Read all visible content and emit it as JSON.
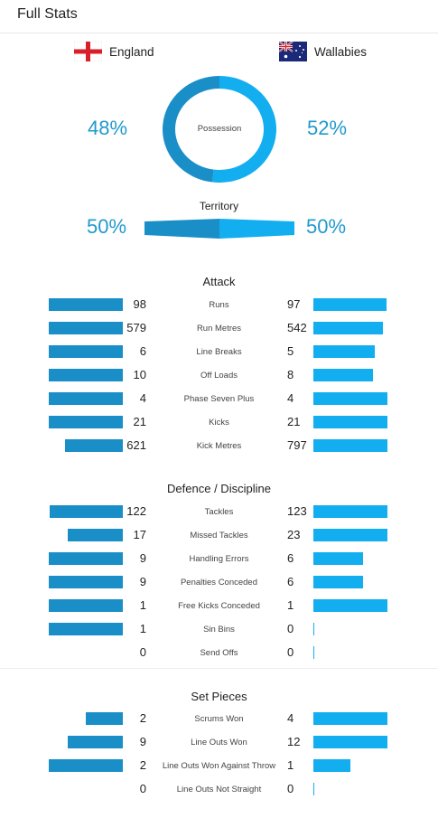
{
  "page_title": "Full Stats",
  "teams": {
    "home": {
      "name": "England",
      "flag_icon": "england-flag-icon"
    },
    "away": {
      "name": "Wallabies",
      "flag_icon": "australia-flag-icon"
    }
  },
  "possession": {
    "label": "Possession",
    "home": "48%",
    "away": "52%",
    "home_value": 48,
    "away_value": 52
  },
  "territory": {
    "label": "Territory",
    "home": "50%",
    "away": "50%",
    "home_value": 50,
    "away_value": 50
  },
  "colors": {
    "home": "#1a8fc7",
    "away": "#12aef0"
  },
  "sections": [
    {
      "title": "Attack",
      "rows": [
        {
          "label": "Runs",
          "home": "98",
          "away": "97"
        },
        {
          "label": "Run Metres",
          "home": "579",
          "away": "542"
        },
        {
          "label": "Line Breaks",
          "home": "6",
          "away": "5"
        },
        {
          "label": "Off Loads",
          "home": "10",
          "away": "8"
        },
        {
          "label": "Phase Seven Plus",
          "home": "4",
          "away": "4"
        },
        {
          "label": "Kicks",
          "home": "21",
          "away": "21"
        },
        {
          "label": "Kick Metres",
          "home": "621",
          "away": "797"
        }
      ]
    },
    {
      "title": "Defence / Discipline",
      "rows": [
        {
          "label": "Tackles",
          "home": "122",
          "away": "123"
        },
        {
          "label": "Missed Tackles",
          "home": "17",
          "away": "23"
        },
        {
          "label": "Handling Errors",
          "home": "9",
          "away": "6"
        },
        {
          "label": "Penalties Conceded",
          "home": "9",
          "away": "6"
        },
        {
          "label": "Free Kicks Conceded",
          "home": "1",
          "away": "1"
        },
        {
          "label": "Sin Bins",
          "home": "1",
          "away": "0"
        },
        {
          "label": "Send Offs",
          "home": "0",
          "away": "0"
        }
      ]
    },
    {
      "title": "Set Pieces",
      "rows": [
        {
          "label": "Scrums Won",
          "home": "2",
          "away": "4"
        },
        {
          "label": "Line Outs Won",
          "home": "9",
          "away": "12"
        },
        {
          "label": "Line Outs Won Against Throw",
          "home": "2",
          "away": "1"
        },
        {
          "label": "Line Outs Not Straight",
          "home": "0",
          "away": "0"
        }
      ]
    }
  ]
}
